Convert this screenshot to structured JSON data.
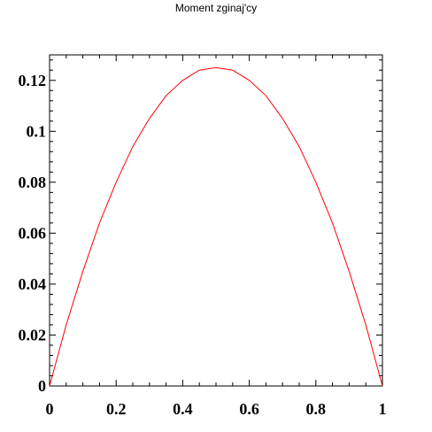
{
  "chart_data": {
    "type": "line",
    "title": "Moment zginaj'cy",
    "xlabel": "",
    "ylabel": "",
    "xlim": [
      0,
      1
    ],
    "ylim": [
      0,
      0.13
    ],
    "x_ticks": [
      0,
      0.2,
      0.4,
      0.6,
      0.8,
      1
    ],
    "x_tick_labels": [
      "0",
      "0.2",
      "0.4",
      "0.6",
      "0.8",
      "1"
    ],
    "y_ticks": [
      0,
      0.02,
      0.04,
      0.06,
      0.08,
      0.1,
      0.12
    ],
    "y_tick_labels": [
      "0",
      "0.02",
      "0.04",
      "0.06",
      "0.08",
      "0.1",
      "0.12"
    ],
    "grid": false,
    "series": [
      {
        "color": "#ff0000",
        "x": [
          0,
          0.05,
          0.1,
          0.15,
          0.2,
          0.25,
          0.3,
          0.35,
          0.4,
          0.45,
          0.5,
          0.55,
          0.6,
          0.65,
          0.7,
          0.75,
          0.8,
          0.85,
          0.9,
          0.95,
          1
        ],
        "y": [
          0,
          0.024,
          0.045,
          0.064,
          0.08,
          0.094,
          0.105,
          0.114,
          0.12,
          0.124,
          0.125,
          0.124,
          0.12,
          0.114,
          0.105,
          0.094,
          0.08,
          0.064,
          0.045,
          0.024,
          0
        ]
      }
    ]
  }
}
